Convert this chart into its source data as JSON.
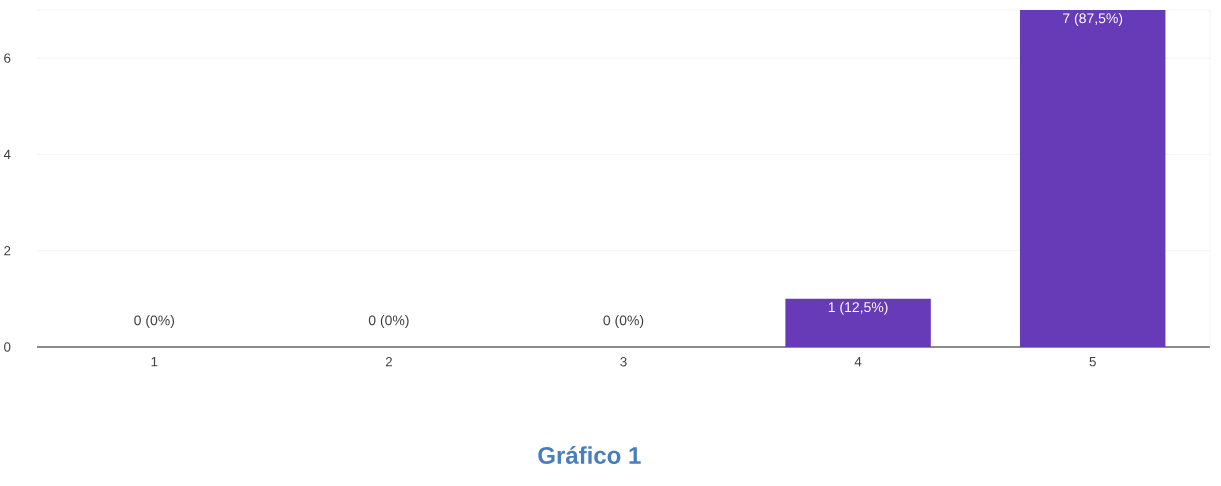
{
  "chart_data": {
    "type": "bar",
    "categories": [
      "1",
      "2",
      "3",
      "4",
      "5"
    ],
    "values": [
      0,
      0,
      0,
      1,
      7
    ],
    "value_labels": [
      "0 (0%)",
      "0 (0%)",
      "0 (0%)",
      "1 (12,5%)",
      "7 (87,5%)"
    ],
    "color": "#673ab7",
    "ylim": [
      0,
      7
    ],
    "yticks": [
      0,
      2,
      4,
      6
    ],
    "grid": "y",
    "annotations": [
      "Gráfico 1"
    ]
  }
}
